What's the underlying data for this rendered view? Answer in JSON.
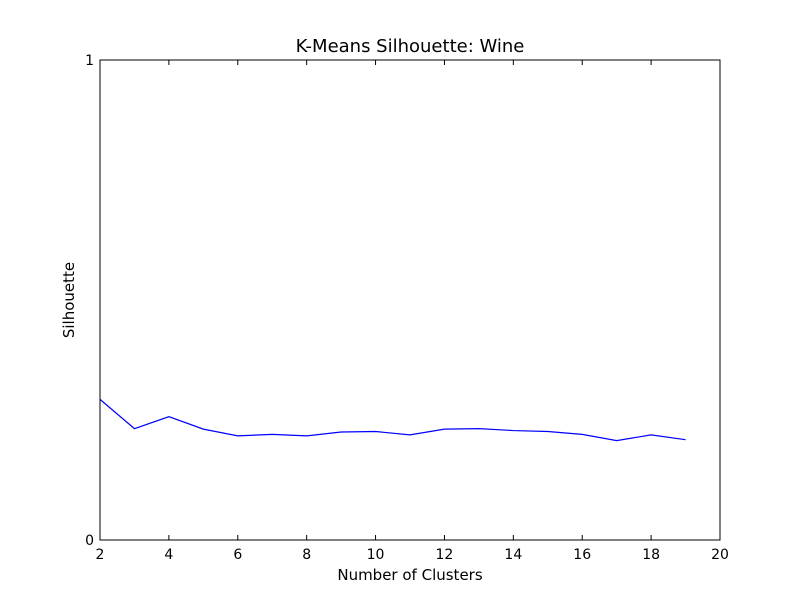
{
  "chart_data": {
    "type": "line",
    "title": "K-Means Silhouette: Wine",
    "xlabel": "Number of Clusters",
    "ylabel": "Silhouette",
    "xlim": [
      2,
      20
    ],
    "ylim": [
      0,
      1
    ],
    "xticks": [
      "2",
      "4",
      "6",
      "8",
      "10",
      "12",
      "14",
      "16",
      "18",
      "20"
    ],
    "yticks": [
      "0",
      "1"
    ],
    "grid": false,
    "series": [
      {
        "color": "#0000ff",
        "x": [
          2,
          3,
          4,
          5,
          6,
          7,
          8,
          9,
          10,
          11,
          12,
          13,
          14,
          15,
          16,
          17,
          18,
          19
        ],
        "y": [
          0.293,
          0.232,
          0.257,
          0.231,
          0.217,
          0.22,
          0.217,
          0.225,
          0.226,
          0.219,
          0.231,
          0.232,
          0.228,
          0.226,
          0.22,
          0.207,
          0.219,
          0.209
        ]
      }
    ]
  }
}
